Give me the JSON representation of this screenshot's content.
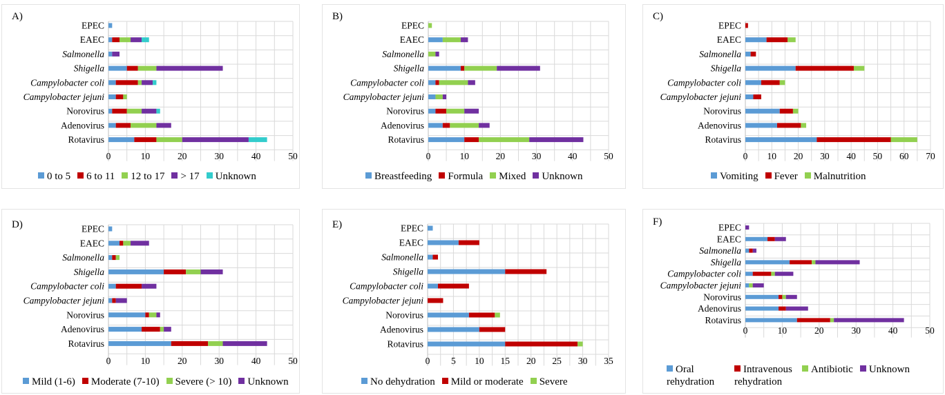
{
  "colors": {
    "blue": "#5b9bd5",
    "red": "#c00000",
    "green": "#92d050",
    "purple": "#7030a0",
    "cyan": "#33cccc"
  },
  "chart_data": [
    {
      "id": "A",
      "label": "A)",
      "type": "bar",
      "orientation": "horizontal",
      "stacked": true,
      "categories": [
        "EPEC",
        "EAEC",
        "Salmonella",
        "Shigella",
        "Campylobacter coli",
        "Campylobacter jejuni",
        "Norovirus",
        "Adenovirus",
        "Rotavirus"
      ],
      "italic_categories": [
        "Salmonella",
        "Shigella",
        "Campylobacter coli",
        "Campylobacter jejuni"
      ],
      "xlim": [
        0,
        50
      ],
      "xticks": [
        0,
        10,
        20,
        30,
        40,
        50
      ],
      "grid": true,
      "legend_position": "bottom",
      "series": [
        {
          "name": "0 to 5",
          "color": "#5b9bd5",
          "values": [
            1,
            1,
            1,
            5,
            2,
            2,
            1,
            2,
            7
          ]
        },
        {
          "name": "6 to 11",
          "color": "#c00000",
          "values": [
            0,
            2,
            0,
            3,
            6,
            2,
            4,
            4,
            6
          ]
        },
        {
          "name": "12 to 17",
          "color": "#92d050",
          "values": [
            0,
            3,
            0,
            5,
            1,
            1,
            4,
            7,
            7
          ]
        },
        {
          "name": "> 17",
          "color": "#7030a0",
          "values": [
            0,
            3,
            2,
            18,
            3,
            0,
            4,
            4,
            18
          ]
        },
        {
          "name": "Unknown",
          "color": "#33cccc",
          "values": [
            0,
            2,
            0,
            0,
            1,
            0,
            1,
            0,
            5
          ]
        }
      ]
    },
    {
      "id": "B",
      "label": "B)",
      "type": "bar",
      "orientation": "horizontal",
      "stacked": true,
      "categories": [
        "EPEC",
        "EAEC",
        "Salmonella",
        "Shigella",
        "Campylobacter coli",
        "Campylobacter jejuni",
        "Norovirus",
        "Adenovirus",
        "Rotavirus"
      ],
      "italic_categories": [
        "Salmonella",
        "Shigella",
        "Campylobacter coli",
        "Campylobacter jejuni"
      ],
      "xlim": [
        0,
        50
      ],
      "xticks": [
        0,
        10,
        20,
        30,
        40,
        50
      ],
      "grid": true,
      "legend_position": "bottom",
      "series": [
        {
          "name": "Breastfeeding",
          "color": "#5b9bd5",
          "values": [
            0,
            4,
            0,
            9,
            2,
            2,
            2,
            4,
            10
          ]
        },
        {
          "name": "Formula",
          "color": "#c00000",
          "values": [
            0,
            0,
            0,
            1,
            1,
            0,
            3,
            2,
            4
          ]
        },
        {
          "name": "Mixed",
          "color": "#92d050",
          "values": [
            1,
            5,
            2,
            9,
            8,
            2,
            5,
            8,
            14
          ]
        },
        {
          "name": "Unknown",
          "color": "#7030a0",
          "values": [
            0,
            2,
            1,
            12,
            2,
            1,
            4,
            3,
            15
          ]
        }
      ]
    },
    {
      "id": "C",
      "label": "C)",
      "type": "bar",
      "orientation": "horizontal",
      "stacked": true,
      "categories": [
        "EPEC",
        "EAEC",
        "Salmonella",
        "Shigella",
        "Campylobacter coli",
        "Campylobacter jejuni",
        "Norovirus",
        "Adenovirus",
        "Rotavirus"
      ],
      "italic_categories": [
        "Salmonella",
        "Shigella",
        "Campylobacter coli",
        "Campylobacter jejuni"
      ],
      "xlim": [
        0,
        70
      ],
      "xticks": [
        0,
        10,
        20,
        30,
        40,
        50,
        60,
        70
      ],
      "grid": true,
      "legend_position": "bottom",
      "series": [
        {
          "name": "Vomiting",
          "color": "#5b9bd5",
          "values": [
            0,
            8,
            2,
            19,
            6,
            3,
            13,
            12,
            27
          ]
        },
        {
          "name": "Fever",
          "color": "#c00000",
          "values": [
            1,
            8,
            2,
            22,
            7,
            3,
            5,
            9,
            28
          ]
        },
        {
          "name": "Malnutrition",
          "color": "#92d050",
          "values": [
            0,
            3,
            0,
            4,
            2,
            0,
            2,
            2,
            10
          ]
        }
      ]
    },
    {
      "id": "D",
      "label": "D)",
      "type": "bar",
      "orientation": "horizontal",
      "stacked": true,
      "categories": [
        "EPEC",
        "EAEC",
        "Salmonella",
        "Shigella",
        "Campylobacter coli",
        "Campylobacter jejuni",
        "Norovirus",
        "Adenovirus",
        "Rotavirus"
      ],
      "italic_categories": [
        "Salmonella",
        "Shigella",
        "Campylobacter coli",
        "Campylobacter jejuni"
      ],
      "xlim": [
        0,
        50
      ],
      "xticks": [
        0,
        10,
        20,
        30,
        40,
        50
      ],
      "grid": true,
      "legend_position": "bottom",
      "series": [
        {
          "name": "Mild (1-6)",
          "color": "#5b9bd5",
          "values": [
            1,
            3,
            1,
            15,
            2,
            1,
            10,
            9,
            17
          ]
        },
        {
          "name": "Moderate (7-10)",
          "color": "#c00000",
          "values": [
            0,
            1,
            1,
            6,
            7,
            1,
            1,
            5,
            10
          ]
        },
        {
          "name": "Severe (> 10)",
          "color": "#92d050",
          "values": [
            0,
            2,
            1,
            4,
            0,
            0,
            2,
            1,
            4
          ]
        },
        {
          "name": "Unknown",
          "color": "#7030a0",
          "values": [
            0,
            5,
            0,
            6,
            4,
            3,
            1,
            2,
            12
          ]
        }
      ]
    },
    {
      "id": "E",
      "label": "E)",
      "type": "bar",
      "orientation": "horizontal",
      "stacked": true,
      "categories": [
        "EPEC",
        "EAEC",
        "Salmonella",
        "Shigella",
        "Campylobacter coli",
        "Campylobacter jejuni",
        "Norovirus",
        "Adenovirus",
        "Rotavirus"
      ],
      "italic_categories": [
        "Salmonella",
        "Shigella",
        "Campylobacter coli",
        "Campylobacter jejuni"
      ],
      "xlim": [
        0,
        35
      ],
      "xticks": [
        0,
        5,
        10,
        15,
        20,
        25,
        30,
        35
      ],
      "grid": true,
      "legend_position": "bottom",
      "series": [
        {
          "name": "No dehydration",
          "color": "#5b9bd5",
          "values": [
            1,
            6,
            1,
            15,
            2,
            0,
            8,
            10,
            15
          ]
        },
        {
          "name": "Mild or moderate",
          "color": "#c00000",
          "values": [
            0,
            4,
            1,
            8,
            6,
            3,
            5,
            5,
            14
          ]
        },
        {
          "name": "Severe",
          "color": "#92d050",
          "values": [
            0,
            0,
            0,
            0,
            0,
            0,
            1,
            0,
            1
          ]
        }
      ]
    },
    {
      "id": "F",
      "label": "F)",
      "type": "bar",
      "orientation": "horizontal",
      "stacked": true,
      "categories": [
        "EPEC",
        "EAEC",
        "Salmonella",
        "Shigella",
        "Campylobacter coli",
        "Campylobacter jejuni",
        "Norovirus",
        "Adenovirus",
        "Rotavirus"
      ],
      "italic_categories": [
        "Salmonella",
        "Shigella",
        "Campylobacter coli",
        "Campylobacter jejuni"
      ],
      "xlim": [
        0,
        50
      ],
      "xticks": [
        0,
        10,
        20,
        30,
        40,
        50
      ],
      "grid": true,
      "legend_position": "bottom",
      "series": [
        {
          "name": "Oral rehydration",
          "color": "#5b9bd5",
          "values": [
            0,
            6,
            1,
            12,
            2,
            1,
            9,
            9,
            14
          ]
        },
        {
          "name": "Intravenous rehydration",
          "color": "#c00000",
          "values": [
            0,
            2,
            1,
            6,
            5,
            0,
            1,
            2,
            9
          ]
        },
        {
          "name": "Antibiotic",
          "color": "#92d050",
          "values": [
            0,
            0,
            0,
            1,
            1,
            1,
            1,
            0,
            1
          ]
        },
        {
          "name": "Unknown",
          "color": "#7030a0",
          "values": [
            1,
            3,
            1,
            12,
            5,
            3,
            3,
            6,
            19
          ]
        }
      ]
    }
  ]
}
